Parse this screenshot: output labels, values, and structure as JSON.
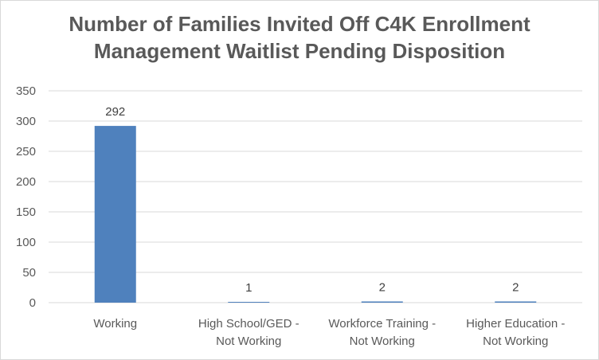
{
  "chart_data": {
    "type": "bar",
    "title": "Number of Families Invited Off C4K Enrollment\nManagement Waitlist Pending Disposition",
    "categories": [
      [
        "Working"
      ],
      [
        "High School/GED -",
        "Not Working"
      ],
      [
        "Workforce Training -",
        "Not Working"
      ],
      [
        "Higher Education -",
        "Not Working"
      ]
    ],
    "values": [
      292,
      1,
      2,
      2
    ],
    "ylim": [
      0,
      350
    ],
    "yticks": [
      0,
      50,
      100,
      150,
      200,
      250,
      300,
      350
    ],
    "grid": true,
    "legend": "none",
    "xlabel": "",
    "ylabel": "",
    "colors": {
      "bar": "#4f81bd",
      "grid": "#d9d9d9",
      "text": "#595959"
    }
  }
}
